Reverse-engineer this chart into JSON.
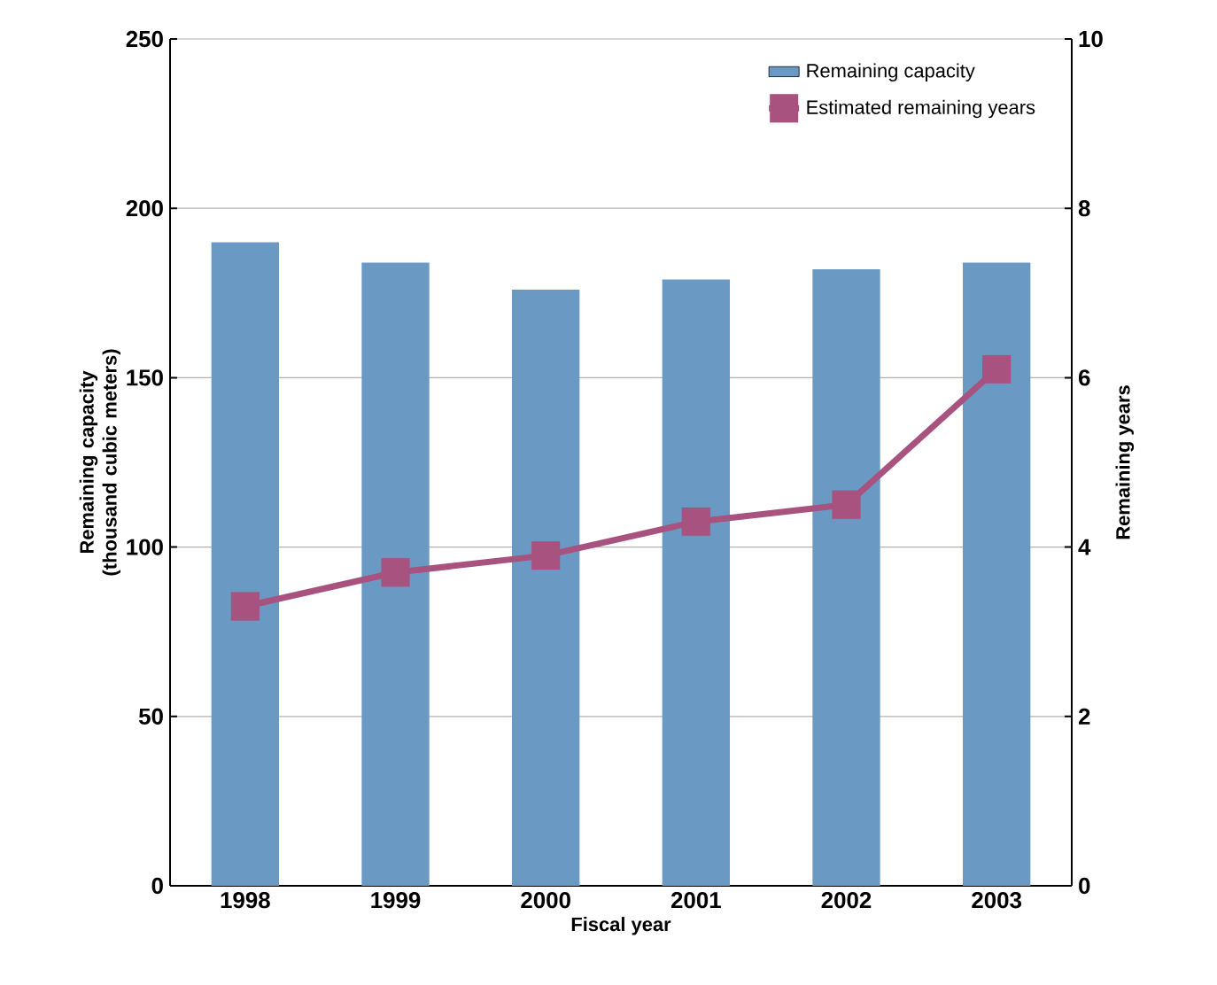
{
  "chart_data": {
    "type": "bar",
    "xlabel": "Fiscal year",
    "ylabel": "Remaining capacity (thousand cubic meters)",
    "y2label": "Remaining years",
    "categories": [
      "1998",
      "1999",
      "2000",
      "2001",
      "2002",
      "2003"
    ],
    "series": [
      {
        "name": "Remaining capacity",
        "color": "#6a9ac4",
        "values": [
          190,
          184,
          176,
          179,
          182,
          184
        ]
      },
      {
        "name": "Estimated remaining years",
        "type": "line",
        "axis": "y2",
        "color": "#a8527f",
        "marker": "square",
        "values": [
          3.3,
          3.7,
          3.9,
          4.3,
          4.5,
          6.1
        ]
      }
    ],
    "ylim": [
      0,
      250
    ],
    "yticks": [
      0,
      50,
      100,
      150,
      200,
      250
    ],
    "y2lim": [
      0,
      10
    ],
    "y2ticks": [
      0,
      2,
      4,
      6,
      8,
      10
    ],
    "grid": "y",
    "legend": "top right"
  }
}
